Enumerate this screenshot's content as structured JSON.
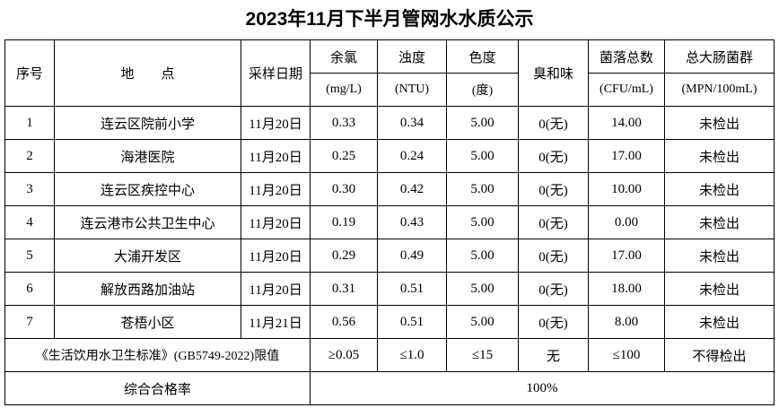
{
  "title": "2023年11月下半月管网水水质公示",
  "header": {
    "index": "序号",
    "location": "地　　点",
    "date": "采样日期",
    "chlorine": "余氯",
    "chlorine_unit": "(mg/L)",
    "turbidity": "浊度",
    "turbidity_unit": "(NTU)",
    "color": "色度",
    "color_unit": "(度)",
    "odor": "臭和味",
    "colony": "菌落总数",
    "colony_unit": "(CFU/mL)",
    "coliform": "总大肠菌群",
    "coliform_unit": "(MPN/100mL)"
  },
  "rows": [
    [
      "1",
      "连云区院前小学",
      "11月20日",
      "0.33",
      "0.34",
      "5.00",
      "0(无)",
      "14.00",
      "未检出"
    ],
    [
      "2",
      "海港医院",
      "11月20日",
      "0.25",
      "0.24",
      "5.00",
      "0(无)",
      "17.00",
      "未检出"
    ],
    [
      "3",
      "连云区疾控中心",
      "11月20日",
      "0.30",
      "0.42",
      "5.00",
      "0(无)",
      "10.00",
      "未检出"
    ],
    [
      "4",
      "连云港市公共卫生中心",
      "11月20日",
      "0.19",
      "0.43",
      "5.00",
      "0(无)",
      "0.00",
      "未检出"
    ],
    [
      "5",
      "大浦开发区",
      "11月20日",
      "0.29",
      "0.49",
      "5.00",
      "0(无)",
      "17.00",
      "未检出"
    ],
    [
      "6",
      "解放西路加油站",
      "11月20日",
      "0.31",
      "0.51",
      "5.00",
      "0(无)",
      "18.00",
      "未检出"
    ],
    [
      "7",
      "苍梧小区",
      "11月21日",
      "0.56",
      "0.51",
      "5.00",
      "0(无)",
      "8.00",
      "未检出"
    ]
  ],
  "standard": {
    "label": "《生活饮用水卫生标准》(GB5749-2022)限值",
    "values": [
      "≥0.05",
      "≤1.0",
      "≤15",
      "无",
      "≤100",
      "不得检出"
    ]
  },
  "pass_rate": {
    "label": "综合合格率",
    "value": "100%"
  }
}
